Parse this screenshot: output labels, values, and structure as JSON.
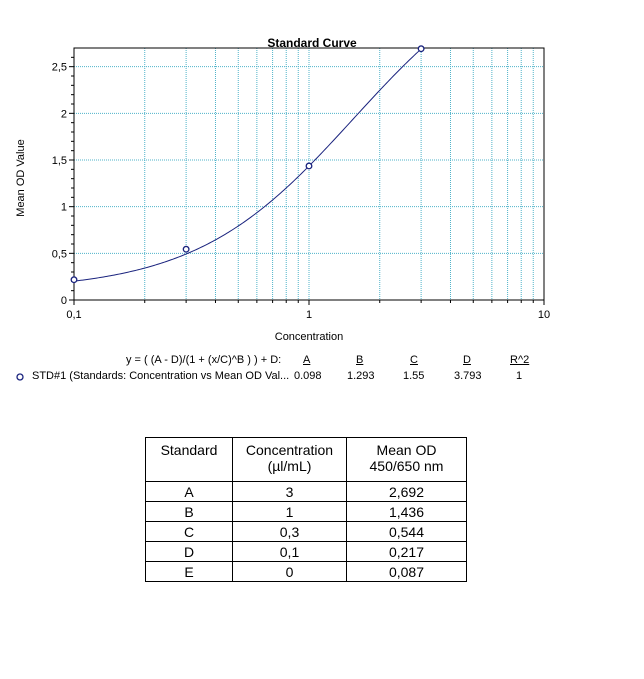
{
  "chart_data": {
    "type": "scatter",
    "title": "Standard Curve",
    "xlabel": "Concentration",
    "ylabel": "Mean OD Value",
    "xscale": "log",
    "xlim": [
      0.1,
      10
    ],
    "ylim": [
      0,
      2.7
    ],
    "x_tick_labels": [
      "0,1",
      "1",
      "10"
    ],
    "y_tick_labels": [
      "0",
      "0,5",
      "1",
      "1,5",
      "2",
      "2,5"
    ],
    "grid": true,
    "series": [
      {
        "name": "STD#1 (Standards: Concentration vs Mean OD Val...",
        "x": [
          0.1,
          0.3,
          1,
          3
        ],
        "y": [
          0.217,
          0.544,
          1.436,
          2.692
        ],
        "marker": "open-circle",
        "fit": {
          "model": "y = ( (A - D)/(1 + (x/C)^B ) ) + D",
          "A": 0.098,
          "B": 1.293,
          "C": 1.55,
          "D": 3.793
        }
      }
    ],
    "colors": {
      "curve": "#1a237e",
      "grid": "#4fb3c9"
    }
  },
  "fit_legend": {
    "equation": "y = ( (A - D)/(1 + (x/C)^B ) ) + D:",
    "headers": [
      "A",
      "B",
      "C",
      "D",
      "R^2"
    ],
    "series_label": "STD#1 (Standards: Concentration vs Mean OD Val...",
    "values": [
      "0.098",
      "1.293",
      "1.55",
      "3.793",
      "1"
    ]
  },
  "table": {
    "headers": [
      "Standard",
      "Concentration\n(µl/mL)",
      "Mean OD\n450/650 nm"
    ],
    "rows": [
      [
        "A",
        "3",
        "2,692"
      ],
      [
        "B",
        "1",
        "1,436"
      ],
      [
        "C",
        "0,3",
        "0,544"
      ],
      [
        "D",
        "0,1",
        "0,217"
      ],
      [
        "E",
        "0",
        "0,087"
      ]
    ]
  }
}
